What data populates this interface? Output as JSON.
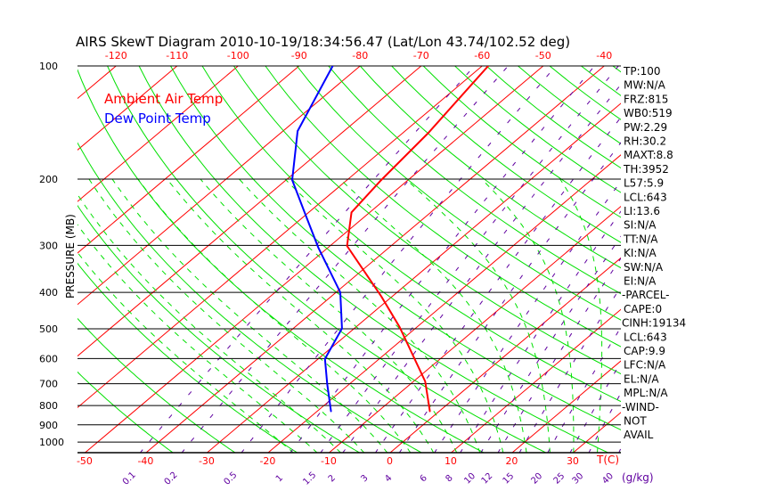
{
  "chart_data": {
    "type": "line",
    "title": "AIRS SkewT Diagram 2010-10-19/18:34:56.47 (Lat/Lon 43.74/102.52 deg)",
    "ylabel": "PRESSURE (MB)",
    "xlabel": "T(C)",
    "mixing_ratio_unit": "(g/kg)",
    "pressure_ticks": [
      100,
      200,
      300,
      400,
      500,
      600,
      700,
      800,
      900,
      1000
    ],
    "pressure_range": [
      100,
      1070
    ],
    "top_temp_ticks": [
      -120,
      -110,
      -100,
      -90,
      -80,
      -70,
      -60,
      -50,
      -40
    ],
    "bottom_temp_ticks": [
      -50,
      -40,
      -30,
      -20,
      -10,
      0,
      10,
      20,
      30
    ],
    "mixing_ratio_ticks": [
      "0.1",
      "0.2",
      "0.5",
      "1",
      "1.5",
      "2",
      "3",
      "4",
      "6",
      "8",
      "10",
      "12",
      "15",
      "20",
      "25",
      "30",
      "40"
    ],
    "legend": [
      {
        "name": "Ambient Air Temp",
        "color": "#ff0000"
      },
      {
        "name": "Dew Point Temp",
        "color": "#0000ff"
      }
    ],
    "series": [
      {
        "name": "Ambient Air Temp",
        "color": "#ff0000",
        "p": [
          829,
          690,
          494,
          410,
          301,
          245,
          201,
          151,
          100
        ],
        "t": [
          -1.5,
          -8.1,
          -22.9,
          -31.8,
          -47.2,
          -53.0,
          -54.4,
          -55.8,
          -59.0
        ]
      },
      {
        "name": "Dew Point Temp",
        "color": "#0000ff",
        "p": [
          829,
          700,
          601,
          499,
          400,
          304,
          245,
          201,
          149,
          100
        ],
        "t": [
          -17.7,
          -23.7,
          -28.9,
          -32.0,
          -39.3,
          -51.6,
          -60.7,
          -69.0,
          -77.6,
          -84.5
        ]
      }
    ],
    "colors": {
      "isotherm": "#ff0000",
      "dry_adiabat": "#00e000",
      "moist_adiabat": "#00e000",
      "mixing_ratio": "#6000a0",
      "isobar": "#000000"
    }
  },
  "indices": [
    "TP:100",
    "MW:N/A",
    "FRZ:815",
    "WB0:519",
    "PW:2.29",
    "RH:30.2",
    "MAXT:8.8",
    "TH:3952",
    "L57:5.9",
    "LCL:643",
    "LI:13.6",
    "SI:N/A",
    "TT:N/A",
    "KI:N/A",
    "SW:N/A",
    "EI:N/A",
    "-PARCEL-",
    "CAPE:0",
    "CINH:19134",
    "LCL:643",
    "CAP:9.9",
    "LFC:N/A",
    "EL:N/A",
    "MPL:N/A",
    "-WIND-",
    "NOT",
    "AVAIL"
  ]
}
